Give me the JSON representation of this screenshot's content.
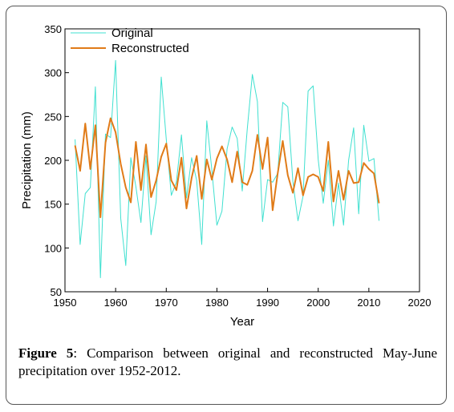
{
  "caption": {
    "label": "Figure 5",
    "text": ": Comparison between original and reconstructed May-June precipitation over 1952-2012."
  },
  "chart_data": {
    "type": "line",
    "xlabel": "Year",
    "ylabel": "Precipitation (mm)",
    "xlim": [
      1950,
      2020
    ],
    "ylim": [
      50,
      350
    ],
    "xticks": [
      1950,
      1960,
      1970,
      1980,
      1990,
      2000,
      2010,
      2020
    ],
    "yticks": [
      50,
      100,
      150,
      200,
      250,
      300,
      350
    ],
    "grid": false,
    "legend_position": "top-left",
    "x": [
      1952,
      1953,
      1954,
      1955,
      1956,
      1957,
      1958,
      1959,
      1960,
      1961,
      1962,
      1963,
      1964,
      1965,
      1966,
      1967,
      1968,
      1969,
      1970,
      1971,
      1972,
      1973,
      1974,
      1975,
      1976,
      1977,
      1978,
      1979,
      1980,
      1981,
      1982,
      1983,
      1984,
      1985,
      1986,
      1987,
      1988,
      1989,
      1990,
      1991,
      1992,
      1993,
      1994,
      1995,
      1996,
      1997,
      1998,
      1999,
      2000,
      2001,
      2002,
      2003,
      2004,
      2005,
      2006,
      2007,
      2008,
      2009,
      2010,
      2011,
      2012
    ],
    "series": [
      {
        "name": "Original",
        "color": "#40e0d0",
        "values": [
          224,
          104,
          162,
          169,
          284,
          66,
          230,
          226,
          314,
          134,
          80,
          203,
          170,
          129,
          205,
          115,
          153,
          295,
          224,
          160,
          175,
          229,
          157,
          203,
          177,
          104,
          245,
          189,
          126,
          142,
          213,
          238,
          225,
          165,
          236,
          298,
          267,
          130,
          178,
          175,
          185,
          266,
          261,
          176,
          131,
          159,
          279,
          285,
          201,
          151,
          200,
          125,
          174,
          126,
          200,
          237,
          139,
          240,
          199,
          202,
          131
        ],
        "stroke_width": 1
      },
      {
        "name": "Reconstructed",
        "color": "#e07b18",
        "values": [
          217,
          188,
          242,
          190,
          240,
          135,
          220,
          248,
          232,
          196,
          169,
          152,
          221,
          166,
          218,
          158,
          177,
          204,
          219,
          177,
          166,
          203,
          145,
          180,
          205,
          156,
          201,
          178,
          202,
          216,
          201,
          175,
          210,
          175,
          172,
          188,
          229,
          190,
          226,
          143,
          185,
          222,
          183,
          163,
          191,
          160,
          181,
          184,
          181,
          165,
          221,
          153,
          188,
          155,
          188,
          174,
          175,
          197,
          190,
          185,
          151
        ],
        "stroke_width": 2
      }
    ]
  }
}
